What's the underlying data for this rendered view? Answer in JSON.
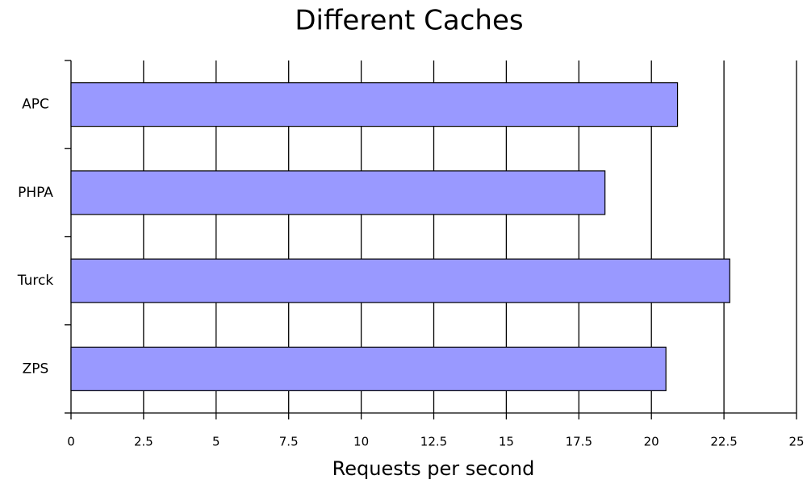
{
  "chart_data": {
    "type": "bar",
    "orientation": "horizontal",
    "title": "Different Caches",
    "x_label": "Requests per second",
    "categories": [
      "APC",
      "PHPA",
      "Turck",
      "ZPS"
    ],
    "values": [
      20.9,
      18.4,
      22.7,
      20.5
    ],
    "color": "#9999ff",
    "xlim": [
      0,
      25
    ],
    "xticks": [
      0,
      2.5,
      5,
      7.5,
      10,
      12.5,
      15,
      17.5,
      20,
      22.5,
      25
    ],
    "grid": true
  }
}
